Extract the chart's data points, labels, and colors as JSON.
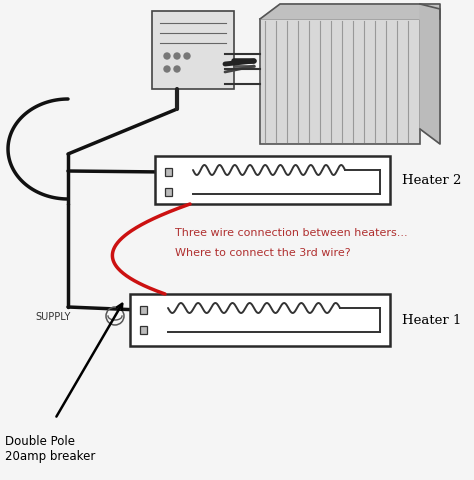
{
  "bg_color": "#f5f5f5",
  "heater2_label": "Heater 2",
  "heater1_label": "Heater 1",
  "supply_label": "SUPPLY",
  "breaker_label": "Double Pole\n20amp breaker",
  "note_line1": "Three wire connection between heaters...",
  "note_line2": "Where to connect the 3rd wire?",
  "note_color": "#b03030",
  "wire_black_color": "#111111",
  "wire_red_color": "#cc1111",
  "text_color": "#000000",
  "heater_edge_color": "#2a2a2a",
  "terminal_color": "#444444"
}
